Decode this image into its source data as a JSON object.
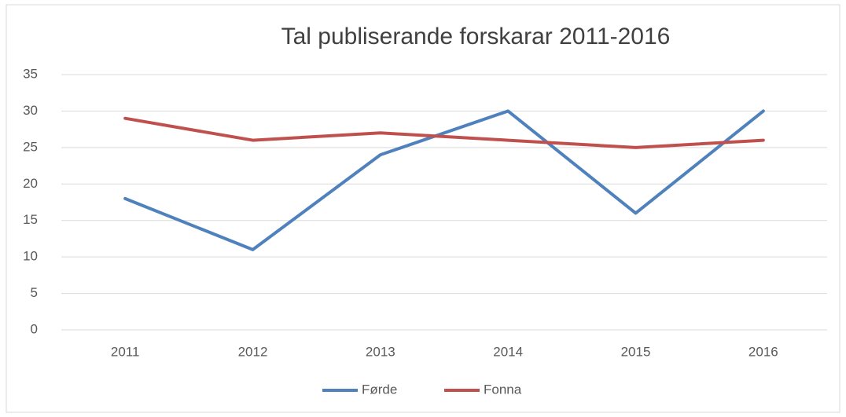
{
  "chart_data": {
    "type": "line",
    "title": "Tal publiserande forskarar 2011-2016",
    "categories": [
      "2011",
      "2012",
      "2013",
      "2014",
      "2015",
      "2016"
    ],
    "series": [
      {
        "name": "Førde",
        "color": "#4f81bd",
        "values": [
          18,
          11,
          24,
          30,
          16,
          30
        ]
      },
      {
        "name": "Fonna",
        "color": "#c0504d",
        "values": [
          29,
          26,
          27,
          26,
          25,
          26
        ]
      }
    ],
    "ylim": [
      0,
      35
    ],
    "yticks": [
      0,
      5,
      10,
      15,
      20,
      25,
      30,
      35
    ],
    "grid": true,
    "legend": "bottom"
  }
}
